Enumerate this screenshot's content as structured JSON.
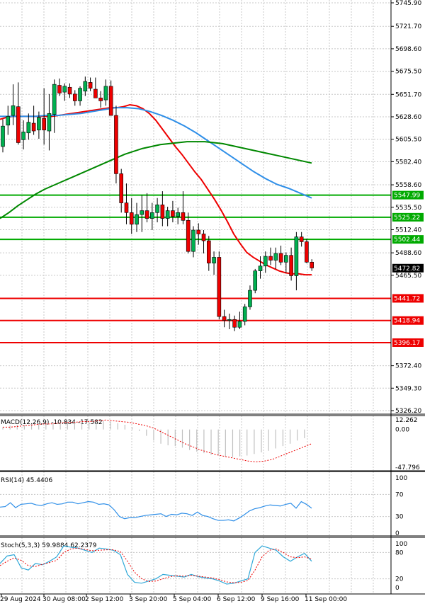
{
  "chart_data": [
    {
      "type": "candlestick",
      "panel": "price",
      "y_axis_ticks": [
        5745.9,
        5721.7,
        5698.6,
        5675.5,
        5651.7,
        5628.6,
        5605.5,
        5582.4,
        5558.6,
        5535.5,
        5512.4,
        5488.6,
        5465.5,
        5372.4,
        5349.3,
        5326.2
      ],
      "ylim": [
        5326.2,
        5745.9
      ],
      "x_tick_labels": [
        "29 Aug 2024",
        "30 Aug 08:00",
        "2 Sep 12:00",
        "3 Sep 20:00",
        "5 Sep 04:00",
        "6 Sep 12:00",
        "9 Sep 16:00",
        "11 Sep 00:00"
      ],
      "last_price_label": "5472.82",
      "horizontal_levels": [
        {
          "value": 5547.99,
          "label": "5547.99",
          "color": "#00aa00"
        },
        {
          "value": 5525.22,
          "label": "5525.22",
          "color": "#00aa00"
        },
        {
          "value": 5502.44,
          "label": "5502.44",
          "color": "#00aa00"
        },
        {
          "value": 5441.72,
          "label": "5441.72",
          "color": "#ee0000"
        },
        {
          "value": 5418.94,
          "label": "5418.94",
          "color": "#ee0000"
        },
        {
          "value": 5396.17,
          "label": "5396.17",
          "color": "#ee0000"
        }
      ],
      "candles": [
        [
          5598,
          5626,
          5592,
          5619
        ],
        [
          5620,
          5640,
          5610,
          5629
        ],
        [
          5630,
          5662,
          5620,
          5640
        ],
        [
          5639,
          5664,
          5600,
          5602
        ],
        [
          5605,
          5625,
          5595,
          5613
        ],
        [
          5612,
          5632,
          5605,
          5623
        ],
        [
          5622,
          5640,
          5610,
          5614
        ],
        [
          5615,
          5634,
          5606,
          5628
        ],
        [
          5627,
          5658,
          5600,
          5615
        ],
        [
          5614,
          5652,
          5594,
          5632
        ],
        [
          5631,
          5667,
          5612,
          5662
        ],
        [
          5661,
          5668,
          5650,
          5653
        ],
        [
          5654,
          5663,
          5645,
          5660
        ],
        [
          5659,
          5663,
          5648,
          5652
        ],
        [
          5652,
          5656,
          5640,
          5645
        ],
        [
          5645,
          5660,
          5640,
          5658
        ],
        [
          5655,
          5670,
          5650,
          5665
        ],
        [
          5664,
          5669,
          5655,
          5658
        ],
        [
          5657,
          5669,
          5648,
          5648
        ],
        [
          5648,
          5655,
          5638,
          5645
        ],
        [
          5646,
          5667,
          5640,
          5660
        ],
        [
          5660,
          5666,
          5630,
          5630
        ],
        [
          5630,
          5640,
          5560,
          5570
        ],
        [
          5570,
          5575,
          5530,
          5540
        ],
        [
          5540,
          5560,
          5518,
          5530
        ],
        [
          5530,
          5545,
          5508,
          5518
        ],
        [
          5518,
          5540,
          5510,
          5528
        ],
        [
          5528,
          5548,
          5510,
          5532
        ],
        [
          5532,
          5550,
          5520,
          5524
        ],
        [
          5524,
          5540,
          5512,
          5530
        ],
        [
          5530,
          5545,
          5520,
          5538
        ],
        [
          5538,
          5552,
          5516,
          5524
        ],
        [
          5524,
          5536,
          5516,
          5532
        ],
        [
          5532,
          5542,
          5520,
          5526
        ],
        [
          5526,
          5535,
          5518,
          5530
        ],
        [
          5530,
          5552,
          5518,
          5522
        ],
        [
          5522,
          5530,
          5488,
          5490
        ],
        [
          5490,
          5516,
          5484,
          5512
        ],
        [
          5512,
          5519,
          5497,
          5508
        ],
        [
          5508,
          5512,
          5488,
          5501
        ],
        [
          5501,
          5506,
          5470,
          5478
        ],
        [
          5478,
          5490,
          5466,
          5484
        ],
        [
          5484,
          5490,
          5420,
          5423
        ],
        [
          5423,
          5430,
          5412,
          5419
        ],
        [
          5419,
          5426,
          5410,
          5420
        ],
        [
          5420,
          5424,
          5408,
          5412
        ],
        [
          5412,
          5428,
          5410,
          5418
        ],
        [
          5418,
          5436,
          5414,
          5433
        ],
        [
          5433,
          5455,
          5430,
          5450
        ],
        [
          5450,
          5472,
          5447,
          5470
        ],
        [
          5470,
          5485,
          5462,
          5475
        ],
        [
          5475,
          5490,
          5468,
          5485
        ],
        [
          5485,
          5494,
          5476,
          5481
        ],
        [
          5481,
          5494,
          5472,
          5488
        ],
        [
          5488,
          5496,
          5476,
          5479
        ],
        [
          5479,
          5489,
          5468,
          5486
        ],
        [
          5486,
          5494,
          5460,
          5465
        ],
        [
          5465,
          5510,
          5450,
          5505
        ],
        [
          5505,
          5510,
          5495,
          5500
        ],
        [
          5500,
          5503,
          5478,
          5479
        ],
        [
          5479,
          5482,
          5470,
          5473
        ]
      ],
      "moving_averages": [
        {
          "color": "#ee0000",
          "values": [
            5626,
            5628,
            5629,
            5629,
            5629,
            5629,
            5629,
            5629,
            5629,
            5630,
            5631,
            5632,
            5633,
            5634,
            5635,
            5636,
            5637,
            5638,
            5638,
            5639,
            5641,
            5640,
            5637,
            5632,
            5625,
            5616,
            5607,
            5598,
            5590,
            5581,
            5572,
            5564,
            5554,
            5544,
            5533,
            5521,
            5508,
            5498,
            5489,
            5484,
            5480,
            5476,
            5473,
            5470,
            5468,
            5467,
            5467,
            5466,
            5466
          ]
        },
        {
          "color": "#2f8fe8",
          "values": [
            5629,
            5629,
            5629,
            5629,
            5630,
            5630,
            5631,
            5632,
            5634,
            5636,
            5638,
            5638,
            5637,
            5634,
            5630,
            5625,
            5619,
            5612,
            5604,
            5596,
            5588,
            5580,
            5572,
            5565,
            5559,
            5555,
            5550,
            5545
          ]
        },
        {
          "color": "#008800",
          "values": [
            5524,
            5530,
            5537,
            5543,
            5549,
            5554,
            5558,
            5562,
            5566,
            5570,
            5574,
            5578,
            5582,
            5586,
            5590,
            5593,
            5596,
            5598,
            5600,
            5601,
            5602,
            5603,
            5603,
            5603,
            5602,
            5601,
            5599,
            5597,
            5595,
            5593,
            5591,
            5589,
            5587,
            5585,
            5583,
            5581
          ]
        }
      ]
    },
    {
      "type": "bar",
      "panel": "macd",
      "label": "MACD(12,26,9) -10.834 -17.582",
      "y_axis_ticks": [
        "12.262",
        "0.00",
        "-47.796"
      ],
      "ylim": [
        -47.796,
        12.262
      ],
      "values": [
        3,
        5,
        6,
        6,
        7,
        8,
        8,
        9,
        9,
        10,
        10,
        11,
        12,
        12,
        11,
        10,
        8,
        6,
        3,
        -2,
        -8,
        -14,
        -18,
        -20,
        -21,
        -23,
        -26,
        -28,
        -30,
        -32,
        -33,
        -34,
        -35,
        -34,
        -33,
        -31,
        -29,
        -27,
        -24,
        -21,
        -18,
        -14,
        -11
      ],
      "signal": [
        3,
        3,
        4,
        5,
        6,
        7,
        7,
        8,
        9,
        9,
        10,
        10,
        11,
        12,
        11,
        10,
        9,
        7,
        5,
        2,
        -3,
        -8,
        -13,
        -18,
        -22,
        -26,
        -29,
        -32,
        -34,
        -36,
        -38,
        -40,
        -41,
        -40,
        -38,
        -34,
        -30,
        -26,
        -22,
        -18
      ]
    },
    {
      "type": "line",
      "panel": "rsi",
      "label": "RSI(14) 45.4406",
      "y_axis_ticks": [
        "100",
        "70",
        "30",
        "0"
      ],
      "ylim": [
        0,
        100
      ],
      "values": [
        47,
        48,
        55,
        46,
        52,
        53,
        54,
        51,
        50,
        53,
        55,
        52,
        53,
        56,
        56,
        53,
        55,
        57,
        56,
        52,
        53,
        51,
        42,
        30,
        26,
        28,
        28,
        30,
        32,
        33,
        34,
        35,
        30,
        34,
        33,
        36,
        35,
        32,
        38,
        32,
        30,
        26,
        23,
        23,
        24,
        22,
        27,
        33,
        40,
        44,
        46,
        49,
        51,
        50,
        49,
        52,
        54,
        45,
        57,
        52,
        45
      ]
    },
    {
      "type": "line",
      "panel": "stochastic",
      "label": "Stoch(5,3,3) 59.9884 62.2379",
      "y_axis_ticks": [
        "100",
        "80",
        "20",
        "0"
      ],
      "ylim": [
        0,
        100
      ],
      "k_values": [
        55,
        72,
        75,
        45,
        40,
        55,
        52,
        60,
        70,
        95,
        92,
        90,
        85,
        80,
        90,
        88,
        85,
        75,
        30,
        12,
        10,
        15,
        20,
        30,
        28,
        26,
        24,
        30,
        25,
        22,
        20,
        15,
        8,
        10,
        15,
        20,
        80,
        95,
        90,
        85,
        70,
        60,
        70,
        78,
        60
      ],
      "d_values": [
        50,
        60,
        68,
        62,
        50,
        48,
        53,
        57,
        62,
        80,
        88,
        90,
        87,
        84,
        85,
        86,
        86,
        82,
        60,
        35,
        20,
        14,
        15,
        20,
        25,
        27,
        26,
        28,
        26,
        24,
        22,
        18,
        13,
        11,
        12,
        16,
        40,
        70,
        85,
        88,
        80,
        70,
        68,
        70,
        65
      ]
    }
  ]
}
